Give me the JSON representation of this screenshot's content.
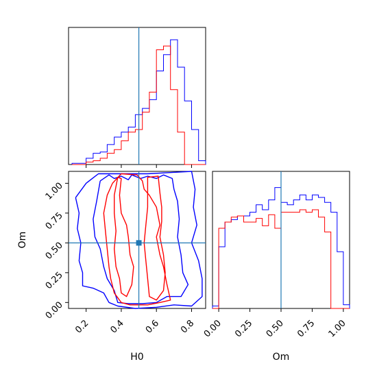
{
  "colors": {
    "series_a": "#0000ff",
    "series_b": "#ff0000",
    "truth": "#1f77b4"
  },
  "chart_data": [
    {
      "type": "histogram",
      "panel": "H0 marginal",
      "xlim": [
        0.1,
        0.88
      ],
      "truth": 0.5,
      "bin_edges": [
        0.12,
        0.16,
        0.2,
        0.24,
        0.28,
        0.32,
        0.36,
        0.4,
        0.44,
        0.48,
        0.52,
        0.56,
        0.6,
        0.64,
        0.68,
        0.72,
        0.76,
        0.8,
        0.84,
        0.88
      ],
      "series": [
        {
          "color": "#0000ff",
          "values": [
            0.01,
            0.01,
            0.05,
            0.09,
            0.1,
            0.16,
            0.22,
            0.26,
            0.3,
            0.4,
            0.45,
            0.52,
            0.75,
            0.88,
            1.0,
            0.78,
            0.51,
            0.28,
            0.03
          ]
        },
        {
          "color": "#ff0000",
          "values": [
            0.0,
            0.0,
            0.02,
            0.03,
            0.05,
            0.09,
            0.12,
            0.19,
            0.26,
            0.28,
            0.42,
            0.58,
            0.92,
            0.95,
            0.6,
            0.26,
            0.0,
            0.0,
            0.0
          ]
        }
      ]
    },
    {
      "type": "histogram",
      "panel": "Om marginal",
      "xlim": [
        -0.05,
        1.05
      ],
      "truth": 0.5,
      "xlabel": "Om",
      "xticks": [
        "0.00",
        "0.25",
        "0.50",
        "0.75",
        "1.00"
      ],
      "bin_edges": [
        -0.05,
        0.0,
        0.05,
        0.1,
        0.15,
        0.2,
        0.25,
        0.3,
        0.35,
        0.4,
        0.45,
        0.5,
        0.55,
        0.6,
        0.65,
        0.7,
        0.75,
        0.8,
        0.85,
        0.9,
        0.95,
        1.0,
        1.05
      ],
      "series": [
        {
          "color": "#0000ff",
          "values": [
            0.02,
            0.5,
            0.7,
            0.72,
            0.75,
            0.75,
            0.78,
            0.84,
            0.8,
            0.88,
            0.98,
            0.86,
            0.84,
            0.88,
            0.92,
            0.88,
            0.92,
            0.9,
            0.86,
            0.78,
            0.46,
            0.03
          ]
        },
        {
          "color": "#ff0000",
          "values": [
            0.0,
            0.65,
            0.7,
            0.74,
            0.75,
            0.7,
            0.7,
            0.73,
            0.67,
            0.76,
            0.65,
            0.78,
            0.78,
            0.78,
            0.8,
            0.78,
            0.8,
            0.74,
            0.62,
            0.0,
            0.0,
            0.0
          ]
        }
      ]
    },
    {
      "type": "contour",
      "panel": "H0 vs Om",
      "xlabel": "H0",
      "ylabel": "Om",
      "xlim": [
        0.1,
        0.88
      ],
      "ylim": [
        -0.05,
        1.1
      ],
      "xticks": [
        "0.2",
        "0.4",
        "0.6",
        "0.8"
      ],
      "yticks": [
        "0.00",
        "0.25",
        "0.50",
        "0.75",
        "1.00"
      ],
      "truth": [
        0.5,
        0.5
      ],
      "contours": [
        {
          "color": "#0000ff",
          "points": [
            [
              0.28,
              1.02
            ],
            [
              0.33,
              1.07
            ],
            [
              0.36,
              1.04
            ],
            [
              0.4,
              1.06
            ],
            [
              0.44,
              1.03
            ],
            [
              0.46,
              1.07
            ],
            [
              0.51,
              1.04
            ],
            [
              0.55,
              1.06
            ],
            [
              0.6,
              1.04
            ],
            [
              0.64,
              1.07
            ],
            [
              0.69,
              1.04
            ],
            [
              0.7,
              0.95
            ],
            [
              0.72,
              0.85
            ],
            [
              0.73,
              0.7
            ],
            [
              0.72,
              0.55
            ],
            [
              0.74,
              0.4
            ],
            [
              0.75,
              0.25
            ],
            [
              0.78,
              0.15
            ],
            [
              0.74,
              0.05
            ],
            [
              0.66,
              0.05
            ],
            [
              0.6,
              0.0
            ],
            [
              0.52,
              -0.01
            ],
            [
              0.44,
              -0.01
            ],
            [
              0.38,
              0.0
            ],
            [
              0.36,
              0.1
            ],
            [
              0.32,
              0.2
            ],
            [
              0.3,
              0.3
            ],
            [
              0.28,
              0.45
            ],
            [
              0.25,
              0.55
            ],
            [
              0.24,
              0.7
            ],
            [
              0.26,
              0.85
            ],
            [
              0.28,
              1.02
            ]
          ]
        },
        {
          "color": "#0000ff",
          "points": [
            [
              0.14,
              0.88
            ],
            [
              0.2,
              1.0
            ],
            [
              0.27,
              1.08
            ],
            [
              0.4,
              1.08
            ],
            [
              0.55,
              1.08
            ],
            [
              0.68,
              1.09
            ],
            [
              0.8,
              1.1
            ],
            [
              0.82,
              0.95
            ],
            [
              0.81,
              0.8
            ],
            [
              0.83,
              0.65
            ],
            [
              0.8,
              0.5
            ],
            [
              0.84,
              0.35
            ],
            [
              0.86,
              0.2
            ],
            [
              0.86,
              0.05
            ],
            [
              0.8,
              -0.03
            ],
            [
              0.7,
              -0.02
            ],
            [
              0.6,
              -0.04
            ],
            [
              0.48,
              -0.05
            ],
            [
              0.38,
              -0.03
            ],
            [
              0.33,
              0.0
            ],
            [
              0.3,
              0.08
            ],
            [
              0.24,
              0.12
            ],
            [
              0.18,
              0.14
            ],
            [
              0.18,
              0.25
            ],
            [
              0.16,
              0.35
            ],
            [
              0.17,
              0.5
            ],
            [
              0.15,
              0.62
            ],
            [
              0.16,
              0.75
            ],
            [
              0.14,
              0.88
            ]
          ]
        },
        {
          "color": "#ff0000",
          "points": [
            [
              0.36,
              0.9
            ],
            [
              0.38,
              1.05
            ],
            [
              0.4,
              1.04
            ],
            [
              0.39,
              0.9
            ],
            [
              0.4,
              0.75
            ],
            [
              0.43,
              0.65
            ],
            [
              0.44,
              0.55
            ],
            [
              0.45,
              0.4
            ],
            [
              0.47,
              0.3
            ],
            [
              0.46,
              0.15
            ],
            [
              0.43,
              0.05
            ],
            [
              0.4,
              0.08
            ],
            [
              0.39,
              0.2
            ],
            [
              0.37,
              0.3
            ],
            [
              0.36,
              0.45
            ],
            [
              0.37,
              0.6
            ],
            [
              0.36,
              0.75
            ],
            [
              0.36,
              0.9
            ]
          ]
        },
        {
          "color": "#ff0000",
          "points": [
            [
              0.55,
              0.9
            ],
            [
              0.55,
              1.05
            ],
            [
              0.61,
              1.06
            ],
            [
              0.62,
              0.92
            ],
            [
              0.63,
              0.8
            ],
            [
              0.63,
              0.68
            ],
            [
              0.62,
              0.55
            ],
            [
              0.64,
              0.4
            ],
            [
              0.65,
              0.25
            ],
            [
              0.64,
              0.1
            ],
            [
              0.6,
              0.02
            ],
            [
              0.56,
              0.05
            ],
            [
              0.55,
              0.2
            ],
            [
              0.54,
              0.35
            ],
            [
              0.53,
              0.5
            ],
            [
              0.54,
              0.65
            ],
            [
              0.55,
              0.8
            ],
            [
              0.55,
              0.9
            ]
          ]
        },
        {
          "color": "#ff0000",
          "points": [
            [
              0.35,
              1.0
            ],
            [
              0.4,
              1.08
            ],
            [
              0.49,
              1.07
            ],
            [
              0.52,
              1.02
            ],
            [
              0.53,
              0.95
            ],
            [
              0.56,
              0.9
            ],
            [
              0.6,
              0.8
            ],
            [
              0.62,
              0.65
            ],
            [
              0.6,
              0.55
            ],
            [
              0.62,
              0.4
            ],
            [
              0.64,
              0.3
            ],
            [
              0.66,
              0.15
            ],
            [
              0.68,
              0.02
            ],
            [
              0.62,
              0.0
            ],
            [
              0.55,
              -0.02
            ],
            [
              0.45,
              -0.02
            ],
            [
              0.4,
              0.0
            ],
            [
              0.36,
              0.08
            ],
            [
              0.34,
              0.2
            ],
            [
              0.33,
              0.3
            ],
            [
              0.32,
              0.45
            ],
            [
              0.31,
              0.6
            ],
            [
              0.3,
              0.75
            ],
            [
              0.32,
              0.9
            ],
            [
              0.35,
              1.0
            ]
          ]
        }
      ]
    }
  ]
}
